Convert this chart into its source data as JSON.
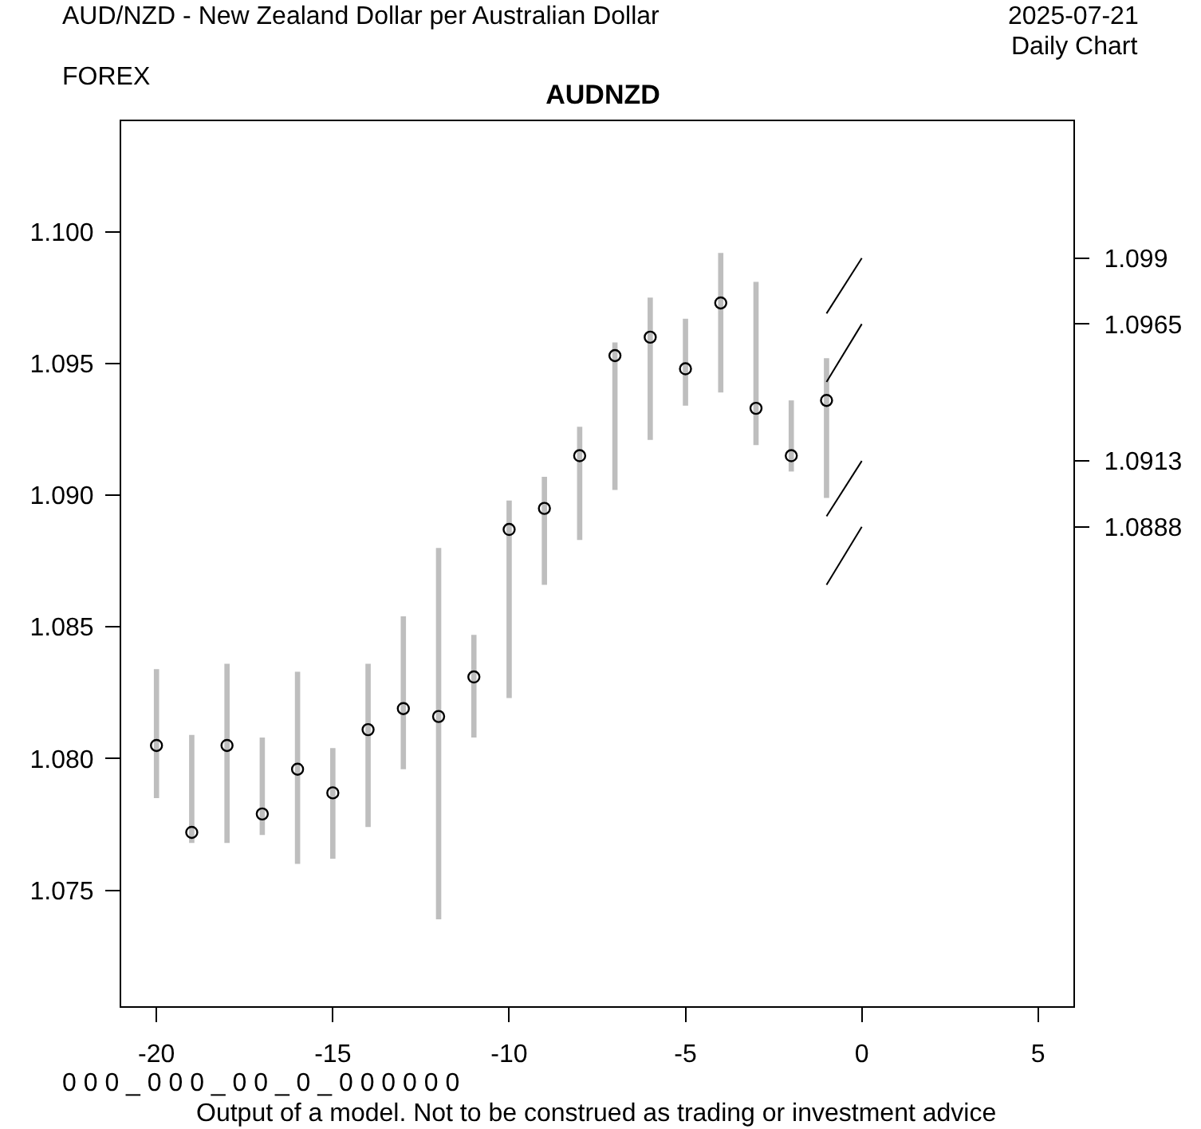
{
  "chart_data": {
    "type": "bar",
    "title": "AUDNZD",
    "subtitle": "AUD/NZD - New Zealand Dollar per Australian Dollar",
    "annotations": [
      "2025-07-21",
      "Daily Chart",
      "FOREX",
      "0 0 0 _ 0 0 0 _ 0 0 _ 0 _ 0 0 0 0 0 0",
      "Output of a model. Not to be construed as trading or investment advice"
    ],
    "xlim": [
      -21,
      6
    ],
    "xticks": [
      -20,
      -15,
      -10,
      -5,
      0,
      5
    ],
    "ylim": [
      1.0706,
      1.1042
    ],
    "yticks": [
      1.075,
      {
        "value": 1.08,
        "label": "1.080"
      },
      1.085,
      {
        "value": 1.09,
        "label": "1.090"
      },
      1.095,
      {
        "value": 1.1,
        "label": "1.100"
      }
    ],
    "y2lim": [
      1.0706,
      1.1042
    ],
    "y2ticks": [
      1.099,
      1.0965,
      1.0913,
      1.0888
    ],
    "grid": false,
    "series": [
      {
        "color": "#bebebe",
        "x": [
          -20,
          -19,
          -18,
          -17,
          -16,
          -15,
          -14,
          -13,
          -12,
          -11,
          -10,
          -9,
          -8,
          -7,
          -6,
          -5,
          -4,
          -3,
          -2,
          -1
        ],
        "base": [
          1.0785,
          1.0768,
          1.0768,
          1.0771,
          1.076,
          1.0762,
          1.0774,
          1.0796,
          1.0739,
          1.0808,
          1.0823,
          1.0866,
          1.0883,
          1.0902,
          1.0921,
          1.0934,
          1.0939,
          1.0919,
          1.0909,
          1.0899
        ],
        "values": [
          0.0049,
          0.0041,
          0.0068,
          0.0037,
          0.0073,
          0.0042,
          0.0062,
          0.0058,
          0.0141,
          0.0039,
          0.0075,
          0.0041,
          0.0043,
          0.0056,
          0.0054,
          0.0033,
          0.0053,
          0.0062,
          0.0027,
          0.0053
        ]
      },
      {
        "type": "scatter",
        "marker": "circle",
        "color": "#000000",
        "x": [
          -20,
          -19,
          -18,
          -17,
          -16,
          -15,
          -14,
          -13,
          -12,
          -11,
          -10,
          -9,
          -8,
          -7,
          -6,
          -5,
          -4,
          -3,
          -2,
          -1
        ],
        "values": [
          1.0805,
          1.0772,
          1.0805,
          1.0779,
          1.0796,
          1.0787,
          1.0811,
          1.0819,
          1.0816,
          1.0831,
          1.0887,
          1.0895,
          1.0915,
          1.0953,
          1.096,
          1.0948,
          1.0973,
          1.0933,
          1.0915,
          1.0936
        ]
      },
      {
        "type": "line",
        "axis": "y2",
        "color": "#000000",
        "x": [
          -1,
          0
        ],
        "values": [
          1.0969,
          1.099
        ]
      },
      {
        "type": "line",
        "axis": "y2",
        "color": "#000000",
        "x": [
          -1,
          0
        ],
        "values": [
          1.0943,
          1.0965
        ]
      },
      {
        "type": "line",
        "axis": "y2",
        "color": "#000000",
        "x": [
          -1,
          0
        ],
        "values": [
          1.0892,
          1.0913
        ]
      },
      {
        "type": "line",
        "axis": "y2",
        "color": "#000000",
        "x": [
          -1,
          0
        ],
        "values": [
          1.0866,
          1.0888
        ]
      }
    ]
  }
}
